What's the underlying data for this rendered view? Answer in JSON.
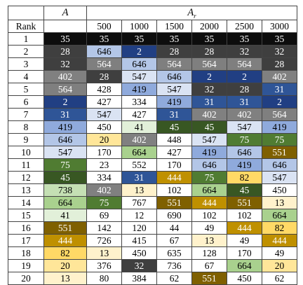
{
  "header": {
    "a_label": "A",
    "ar_label": "A",
    "ar_sub": "r",
    "rank_label": "Rank",
    "columns": [
      "500",
      "1000",
      "1500",
      "2000",
      "2500",
      "3000"
    ]
  },
  "palette": {
    "35": "#0d0d0d",
    "28": "#3f3f3f",
    "32": "#3f3f3f",
    "2": "#213f83",
    "564": "#7f7f7f",
    "646": "#b3c6e7",
    "402": "#808080",
    "547": "#dae3f3",
    "419": "#8faadc",
    "31": "#2f5597",
    "45": "#385723",
    "75": "#507c32",
    "551": "#7f6000",
    "444": "#bf9000",
    "82": "#ffd966",
    "664": "#a9d18e",
    "738": "#c5e0b4",
    "41": "#e2f0d9",
    "20": "#ffe699",
    "13": "#fff2cc"
  },
  "light_text": [
    "35",
    "28",
    "32",
    "2",
    "564",
    "402",
    "31",
    "45",
    "75",
    "551",
    "444"
  ],
  "rows": [
    {
      "rank": "1",
      "cells": [
        "35",
        "35",
        "35",
        "35",
        "35",
        "35",
        "35"
      ]
    },
    {
      "rank": "2",
      "cells": [
        "28",
        "646",
        "2",
        "28",
        "28",
        "32",
        "32"
      ]
    },
    {
      "rank": "3",
      "cells": [
        "32",
        "564",
        "646",
        "564",
        "564",
        "564",
        "28"
      ]
    },
    {
      "rank": "4",
      "cells": [
        "402",
        "28",
        "547",
        "646",
        "2",
        "2",
        "402"
      ]
    },
    {
      "rank": "5",
      "cells": [
        "564",
        "428",
        "419",
        "547",
        "32",
        "28",
        "31"
      ]
    },
    {
      "rank": "6",
      "cells": [
        "2",
        "427",
        "334",
        "419",
        "31",
        "31",
        "2"
      ]
    },
    {
      "rank": "7",
      "cells": [
        "31",
        "547",
        "427",
        "31",
        "402",
        "402",
        "564"
      ]
    },
    {
      "rank": "8",
      "cells": [
        "419",
        "450",
        "41",
        "45",
        "45",
        "547",
        "419"
      ]
    },
    {
      "rank": "9",
      "cells": [
        "646",
        "20",
        "402",
        "448",
        "547",
        "75",
        "75"
      ]
    },
    {
      "rank": "10",
      "cells": [
        "547",
        "170",
        "664",
        "427",
        "419",
        "646",
        "551"
      ]
    },
    {
      "rank": "11",
      "cells": [
        "75",
        "23",
        "552",
        "170",
        "646",
        "419",
        "646"
      ]
    },
    {
      "rank": "12",
      "cells": [
        "45",
        "334",
        "31",
        "444",
        "75",
        "82",
        "547"
      ]
    },
    {
      "rank": "13",
      "cells": [
        "738",
        "402",
        "13",
        "102",
        "664",
        "45",
        "450"
      ]
    },
    {
      "rank": "14",
      "cells": [
        "664",
        "75",
        "767",
        "551",
        "444",
        "551",
        "13"
      ]
    },
    {
      "rank": "15",
      "cells": [
        "41",
        "69",
        "12",
        "690",
        "102",
        "102",
        "664"
      ]
    },
    {
      "rank": "16",
      "cells": [
        "551",
        "142",
        "120",
        "44",
        "49",
        "444",
        "82"
      ]
    },
    {
      "rank": "17",
      "cells": [
        "444",
        "726",
        "415",
        "67",
        "13",
        "49",
        "444"
      ]
    },
    {
      "rank": "18",
      "cells": [
        "82",
        "13",
        "450",
        "635",
        "128",
        "170",
        "49"
      ]
    },
    {
      "rank": "19",
      "cells": [
        "20",
        "376",
        "32",
        "736",
        "67",
        "664",
        "20"
      ]
    },
    {
      "rank": "20",
      "cells": [
        "13",
        "80",
        "384",
        "62",
        "551",
        "450",
        "62"
      ]
    }
  ]
}
